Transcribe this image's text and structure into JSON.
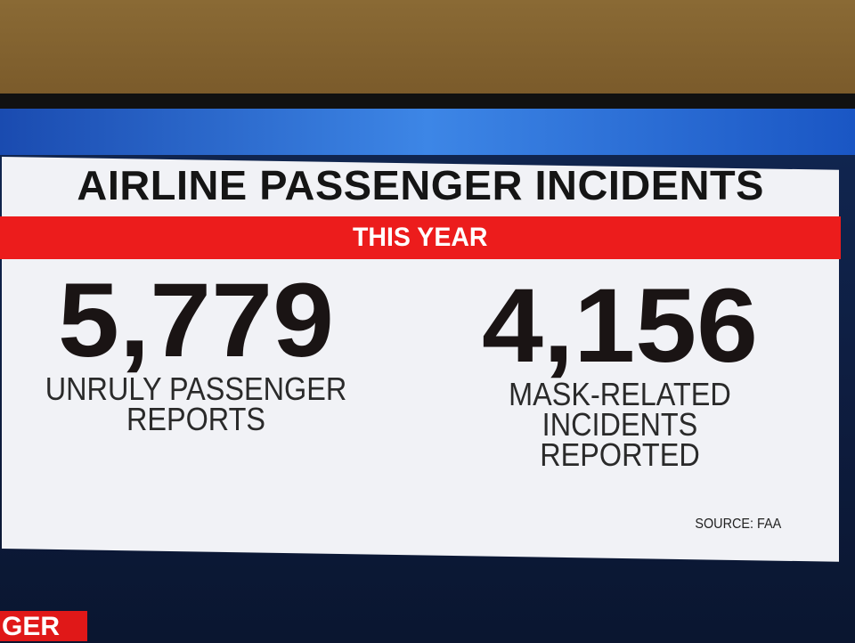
{
  "header": {
    "title": "AIRLINE PASSENGER INCIDENTS",
    "subtitle": "THIS YEAR"
  },
  "stats": [
    {
      "number": "5,779",
      "lines": [
        "UNRULY PASSENGER",
        "REPORTS"
      ]
    },
    {
      "number": "4,156",
      "lines": [
        "MASK-RELATED INCIDENTS",
        "REPORTED"
      ]
    }
  ],
  "source": "SOURCE: FAA",
  "ticker": "GER"
}
